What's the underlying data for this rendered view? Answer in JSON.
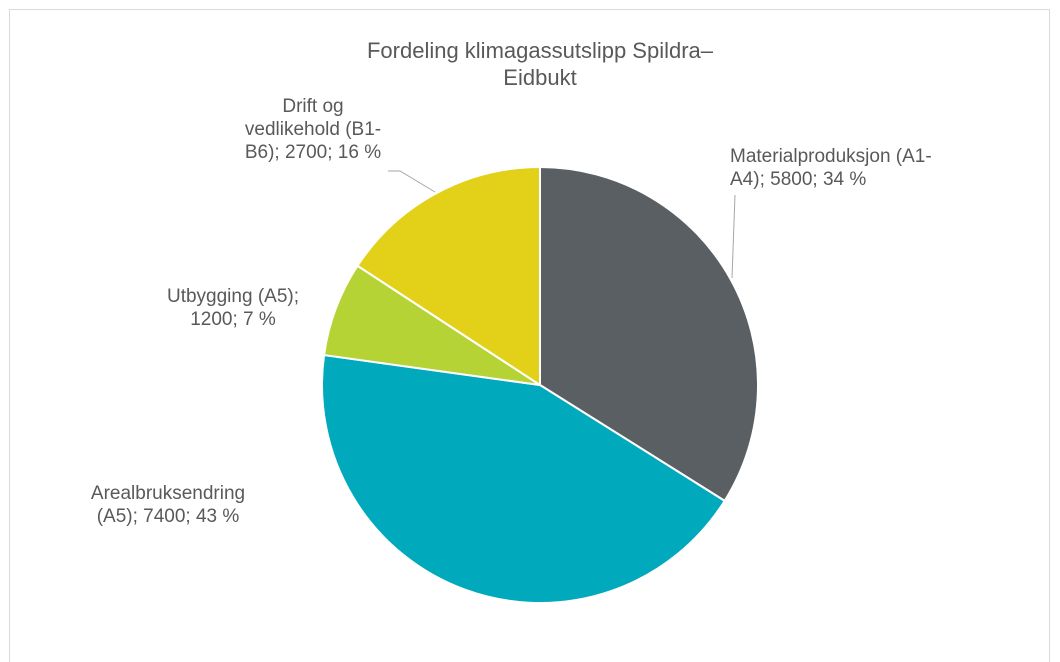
{
  "chart_data": {
    "type": "pie",
    "title": "Fordeling klimagassutslipp Spildra–Eidbukt",
    "values": [
      5800,
      7400,
      1200,
      2700
    ],
    "value_labels": [
      "Materialproduksjon (A1-A4); 5800; 34 %",
      "Arealbruksendring (A5); 7400; 43 %",
      "Utbygging (A5); 1200; 7 %",
      "Drift og vedlikehold (B1-B6); 2700; 16 %"
    ],
    "colors": [
      "#5a5f63",
      "#00a9bc",
      "#b5d334",
      "#e2d118"
    ]
  }
}
